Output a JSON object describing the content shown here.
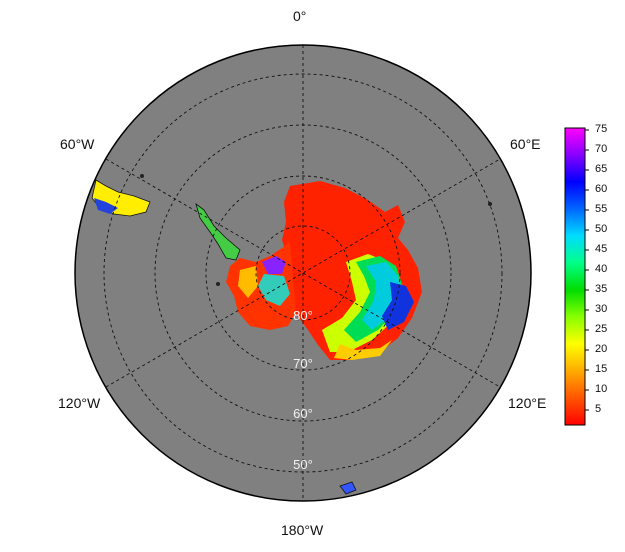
{
  "map": {
    "projection": "south-polar-stereographic",
    "ocean_color": "#808080",
    "background": "#ffffff",
    "longitude_labels": {
      "top": "0°",
      "upper_left": "60°W",
      "upper_right": "60°E",
      "lower_left": "120°W",
      "lower_right": "120°E",
      "bottom": "180°W"
    },
    "latitude_labels": [
      "80°",
      "70°",
      "60°",
      "50°"
    ],
    "grid_style": "dashed"
  },
  "colorbar": {
    "ticks": [
      "75",
      "70",
      "65",
      "60",
      "55",
      "50",
      "45",
      "40",
      "35",
      "30",
      "25",
      "20",
      "15",
      "10",
      "5"
    ],
    "gradient_colors_top_to_bottom": [
      "#ff00ff",
      "#8800ff",
      "#0000ff",
      "#0066ff",
      "#00ddff",
      "#00ff88",
      "#00dd00",
      "#88ff00",
      "#ffff00",
      "#ffaa00",
      "#ff5500",
      "#ff0000"
    ]
  }
}
